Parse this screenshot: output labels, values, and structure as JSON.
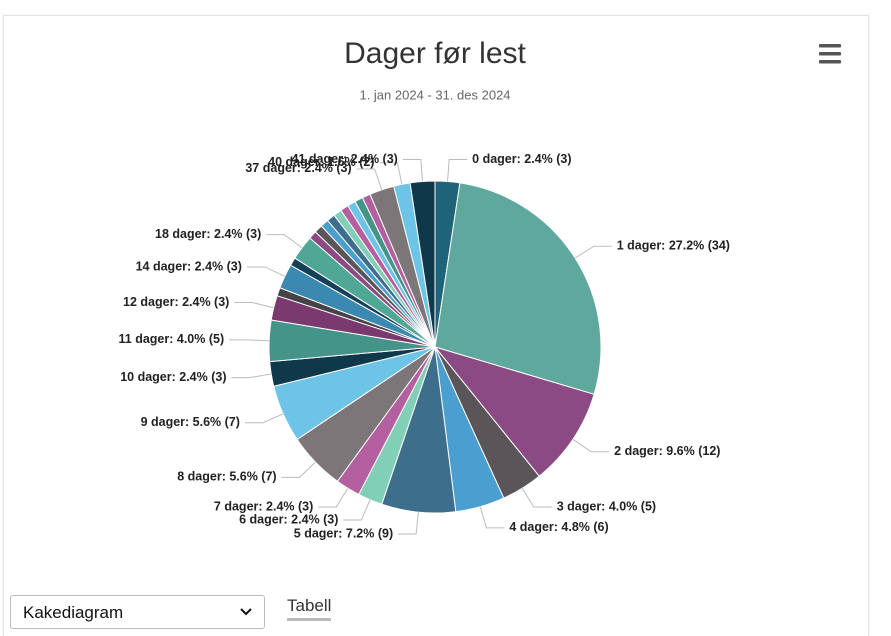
{
  "chart_data": {
    "type": "pie",
    "title": "Dager før lest",
    "subtitle": "1. jan 2024 - 31. des 2024",
    "values": [
      3,
      34,
      12,
      5,
      6,
      9,
      3,
      3,
      7,
      7,
      3,
      5,
      3,
      1,
      3,
      1,
      3,
      1,
      1,
      1,
      1,
      1,
      1,
      1,
      1,
      1,
      3,
      2,
      3
    ],
    "value_labels": [
      "0 dager: 2.4% (3)",
      "1 dager: 27.2% (34)",
      "2 dager: 9.6% (12)",
      "3 dager: 4.0% (5)",
      "4 dager: 4.8% (6)",
      "5 dager: 7.2% (9)",
      "6 dager: 2.4% (3)",
      "7 dager: 2.4% (3)",
      "8 dager: 5.6% (7)",
      "9 dager: 5.6% (7)",
      "10 dager: 2.4% (3)",
      "11 dager: 4.0% (5)",
      "12 dager: 2.4% (3)",
      null,
      "14 dager: 2.4% (3)",
      null,
      "18 dager: 2.4% (3)",
      null,
      null,
      null,
      null,
      null,
      null,
      null,
      null,
      null,
      "37 dager: 2.4% (3)",
      "40 dager: 1.6% (2)",
      "41 dager: 2.4% (3)"
    ],
    "colors": [
      "#1f6378",
      "#5fa89d",
      "#8b4a84",
      "#5a5559",
      "#4b9fd0",
      "#3d6f8c",
      "#82cfb8",
      "#b45fa0",
      "#7c7678",
      "#6ec4e6",
      "#10384b",
      "#45948a",
      "#7a3a70",
      "#464246",
      "#3b88b0",
      "#16405a",
      "#4fa896",
      "#8b4a84",
      "#5a5559",
      "#4b9fd0",
      "#3d6f8c",
      "#82cfb8",
      "#b45fa0",
      "#6ec4e6",
      "#45948a",
      "#b45fa0",
      "#7c7678",
      "#6ec4e6",
      "#10384b"
    ]
  },
  "controls": {
    "select": "Kakediagram",
    "tab": "Tabell"
  }
}
